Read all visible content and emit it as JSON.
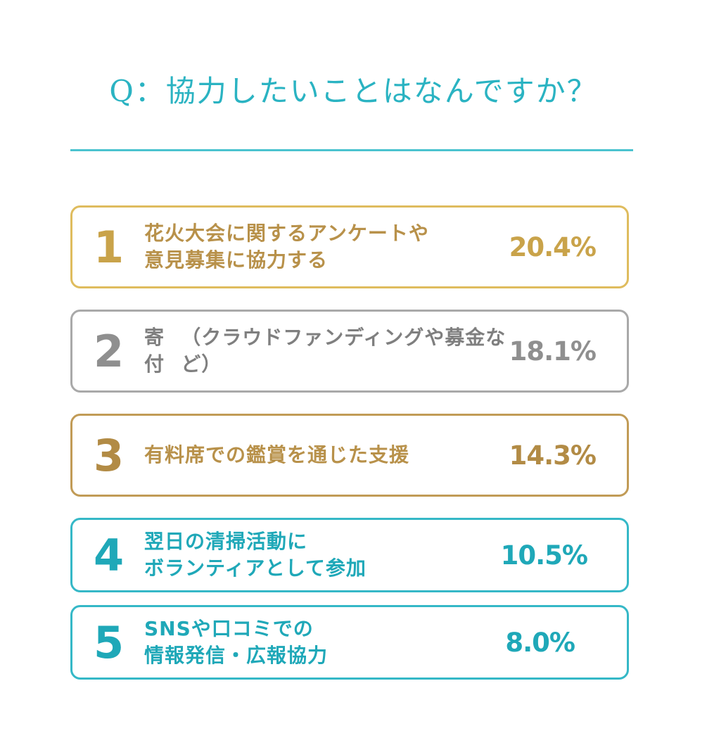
{
  "header": {
    "title": "Q：協力したいことはなんですか？"
  },
  "chart_data": {
    "type": "table",
    "title": "Q：協力したいことはなんですか？",
    "unit": "%",
    "rows": [
      {
        "rank": "1",
        "label": "花火大会に関するアンケートや\n意見募集に協力する",
        "value": 20.4,
        "value_label": "20.4%",
        "style": "gold"
      },
      {
        "rank": "2",
        "label": "寄付",
        "label_note": "（クラウドファンディングや募金など）",
        "value": 18.1,
        "value_label": "18.1%",
        "style": "gray"
      },
      {
        "rank": "3",
        "label": "有料席での鑑賞を通じた支援",
        "value": 14.3,
        "value_label": "14.3%",
        "style": "bronze"
      },
      {
        "rank": "4",
        "label": "翌日の清掃活動に\nボランティアとして参加",
        "value": 10.5,
        "value_label": "10.5%",
        "style": "teal"
      },
      {
        "rank": "5",
        "label": "SNSや口コミでの\n情報発信・広報協力",
        "value": 8.0,
        "value_label": "8.0%",
        "style": "teal"
      }
    ]
  },
  "colors": {
    "title": "#2ab3c2",
    "rule": "#4bc3cf",
    "gold": "#dfbc5e",
    "gray": "#a9a9a9",
    "bronze": "#c19b56",
    "teal": "#35b8c7"
  }
}
